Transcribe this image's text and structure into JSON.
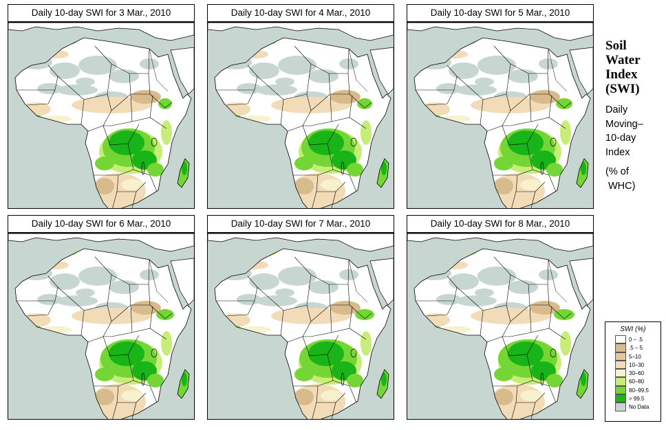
{
  "panels": [
    {
      "title": "Daily 10-day SWI for  3 Mar., 2010"
    },
    {
      "title": "Daily 10-day SWI for  4 Mar., 2010"
    },
    {
      "title": "Daily 10-day SWI for  5 Mar., 2010"
    },
    {
      "title": "Daily 10-day SWI for  6 Mar., 2010"
    },
    {
      "title": "Daily 10-day SWI for  7 Mar., 2010"
    },
    {
      "title": "Daily 10-day SWI for  8 Mar., 2010"
    }
  ],
  "side": {
    "title_lines": [
      "Soil",
      "Water",
      "Index",
      "(SWI)"
    ],
    "sub_lines": [
      "Daily",
      "Moving–",
      "10-day",
      "Index"
    ],
    "unit_lines": [
      "(% of",
      "WHC)"
    ]
  },
  "legend": {
    "title": "SWI (%)",
    "items": [
      {
        "label": "0 – .5",
        "color": "#ffffff"
      },
      {
        "label": ".5 – 5",
        "color": "#d8bb8c"
      },
      {
        "label": "5–10",
        "color": "#e6c898"
      },
      {
        "label": "10–30",
        "color": "#f2dcb8"
      },
      {
        "label": "30–60",
        "color": "#f7f1cd"
      },
      {
        "label": "60–80",
        "color": "#c8ec78"
      },
      {
        "label": "80–99.5",
        "color": "#74d634"
      },
      {
        "label": "> 99.5",
        "color": "#18b418"
      },
      {
        "label": "No Data",
        "color": "#c8d6d2"
      }
    ]
  }
}
